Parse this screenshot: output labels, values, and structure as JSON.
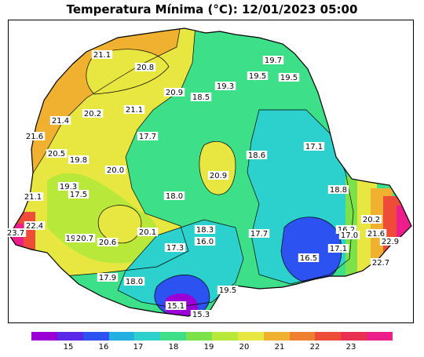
{
  "title": "Temperatura Mínima (°C): 12/01/2023 05:00",
  "colorbar": {
    "colors": [
      "#9a00d6",
      "#5a28e6",
      "#2d52f2",
      "#23b0e0",
      "#2cd0cc",
      "#3de088",
      "#7ce24a",
      "#b8e83a",
      "#e8e640",
      "#f0b030",
      "#ee8030",
      "#ee4b38",
      "#e83050",
      "#ec1e8c"
    ],
    "ticks": [
      "15",
      "16",
      "17",
      "18",
      "19",
      "20",
      "21",
      "22",
      "23"
    ]
  },
  "stations": [
    {
      "text": "21.1"
    },
    {
      "text": "20.8"
    },
    {
      "text": "19.7"
    },
    {
      "text": "19.5"
    },
    {
      "text": "19.5"
    },
    {
      "text": "19.3"
    },
    {
      "text": "20.9"
    },
    {
      "text": "18.5"
    },
    {
      "text": "20.2"
    },
    {
      "text": "21.1"
    },
    {
      "text": "21.4"
    },
    {
      "text": "21.6"
    },
    {
      "text": "17.7"
    },
    {
      "text": "17.1"
    },
    {
      "text": "20.5"
    },
    {
      "text": "19.8"
    },
    {
      "text": "18.6"
    },
    {
      "text": "20.0"
    },
    {
      "text": "20.9"
    },
    {
      "text": "19.3"
    },
    {
      "text": "17.5"
    },
    {
      "text": "18.0"
    },
    {
      "text": "18.8"
    },
    {
      "text": "21.1"
    },
    {
      "text": "22.4"
    },
    {
      "text": "23.7"
    },
    {
      "text": "20.2"
    },
    {
      "text": "18.3"
    },
    {
      "text": "16.2"
    },
    {
      "text": "21.6"
    },
    {
      "text": "19"
    },
    {
      "text": "20.7"
    },
    {
      "text": "20.6"
    },
    {
      "text": "20.1"
    },
    {
      "text": "17.7"
    },
    {
      "text": "17.0"
    },
    {
      "text": "22.9"
    },
    {
      "text": "16.0"
    },
    {
      "text": "17.3"
    },
    {
      "text": "17.1"
    },
    {
      "text": "16.5"
    },
    {
      "text": "22.7"
    },
    {
      "text": "17.9"
    },
    {
      "text": "18.0"
    },
    {
      "text": "19.5"
    },
    {
      "text": "15.1"
    },
    {
      "text": "15.3"
    }
  ]
}
